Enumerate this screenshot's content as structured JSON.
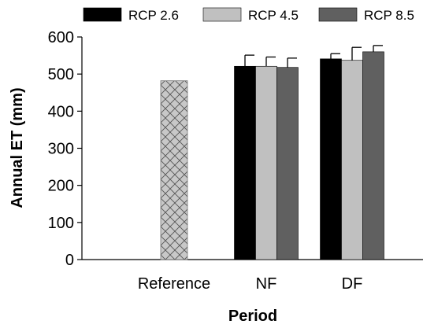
{
  "chart_data": {
    "type": "bar",
    "categories": [
      "Reference",
      "NF",
      "DF"
    ],
    "series": [
      {
        "name": "RCP 2.6",
        "color": "#000000",
        "values": [
          null,
          521,
          541
        ],
        "errors": [
          null,
          30,
          14
        ]
      },
      {
        "name": "RCP 4.5",
        "color": "#c0c0c0",
        "values": [
          null,
          521,
          537
        ],
        "errors": [
          null,
          25,
          35
        ]
      },
      {
        "name": "RCP 8.5",
        "color": "#606060",
        "values": [
          null,
          518,
          560
        ],
        "errors": [
          null,
          25,
          17
        ]
      }
    ],
    "reference": {
      "value": 482,
      "fill": "crosshatch",
      "color": "#c8c8c8"
    },
    "xlabel": "Period",
    "ylabel": "Annual ET (mm)",
    "ylim": [
      0,
      600
    ],
    "yticks": [
      "0",
      "100",
      "200",
      "300",
      "400",
      "500",
      "600"
    ],
    "legend_position": "top",
    "grid": false
  }
}
